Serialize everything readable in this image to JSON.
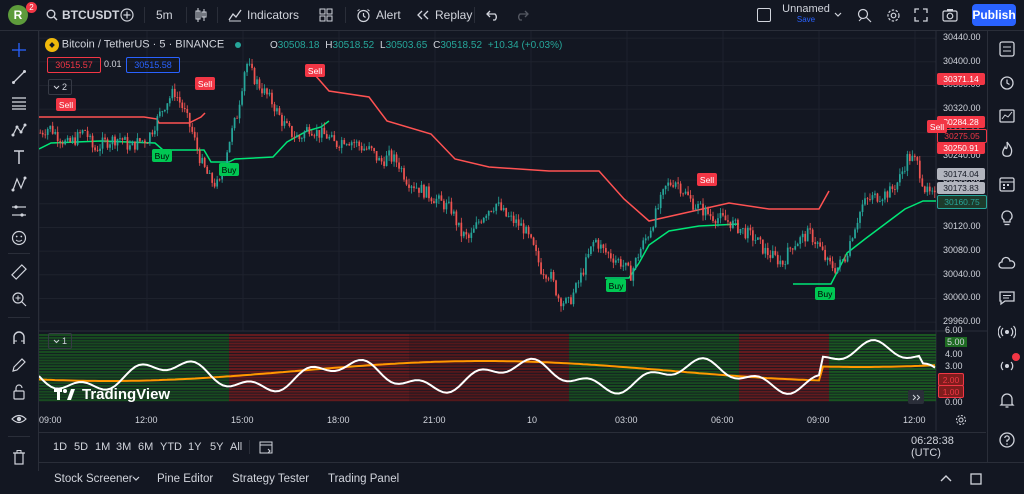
{
  "topbar": {
    "avatar_letter": "R",
    "notif_count": "2",
    "symbol": "BTCUSDT",
    "interval": "5m",
    "indicators_label": "Indicators",
    "alert_label": "Alert",
    "replay_label": "Replay",
    "layout_name": "Unnamed",
    "layout_status": "Save",
    "publish_label": "Publish"
  },
  "legend": {
    "title": "Bitcoin / TetherUS · 5 · BINANCE",
    "o_label": "O",
    "o_value": "30508.18",
    "h_label": "H",
    "h_value": "30518.52",
    "l_label": "L",
    "l_value": "30503.65",
    "c_label": "C",
    "c_value": "30518.52",
    "change": "+10.34 (+0.03%)",
    "sell_price": "30515.57",
    "spread": "0.01",
    "buy_price": "30515.58",
    "indicator_count": "2",
    "pane2_count": "1"
  },
  "price_axis": [
    "30440.00",
    "30400.00",
    "30360.00",
    "30320.00",
    "30280.00",
    "30240.00",
    "30200.00",
    "30160.00",
    "30120.00",
    "30080.00",
    "30040.00",
    "30000.00",
    "29960.00"
  ],
  "price_tags": [
    {
      "text": "30371.14",
      "color": "#f23645"
    },
    {
      "text": "30284.28",
      "color": "#f23645"
    },
    {
      "text": "30275.05",
      "color": "#131722"
    },
    {
      "text": "30250.91",
      "color": "#f23645"
    },
    {
      "text": "30174.04",
      "color": "#b2b5be"
    },
    {
      "text": "30173.83",
      "color": "#b2b5be"
    },
    {
      "text": "30160.75",
      "color": "#1d3a2b"
    }
  ],
  "osc_axis": [
    "6.00",
    "5.00",
    "4.00",
    "3.00",
    "2.00",
    "1.00",
    "0.00"
  ],
  "osc_value_tags": [
    "2.00",
    "1.00"
  ],
  "time_axis": [
    "09:00",
    "12:00",
    "15:00",
    "18:00",
    "21:00",
    "10",
    "03:00",
    "06:00",
    "09:00",
    "12:00"
  ],
  "signals": {
    "buy_label": "Buy",
    "sell_label": "Sell"
  },
  "watermark": "TradingView",
  "ranges": [
    "1D",
    "5D",
    "1M",
    "3M",
    "6M",
    "YTD",
    "1Y",
    "5Y",
    "All"
  ],
  "clock": "06:28:38 (UTC)",
  "footer_tabs": [
    "Stock Screener",
    "Pine Editor",
    "Strategy Tester",
    "Trading Panel"
  ],
  "colors": {
    "up": "#26a69a",
    "down": "#ef5350",
    "buy_line": "#00e676",
    "sell_line": "#ff5252",
    "osc_white": "#ffffff",
    "osc_orange": "#ff9800",
    "accent": "#2962ff"
  },
  "chart_data": {
    "type": "candlestick",
    "ylim": [
      29945,
      30452
    ],
    "candles_close_path_description": "",
    "close_series": [
      30280,
      30290,
      30275,
      30260,
      30270,
      30285,
      30250,
      30262,
      30268,
      30272,
      30255,
      30265,
      30270,
      30300,
      30330,
      30350,
      30320,
      30280,
      30230,
      30200,
      30190,
      30260,
      30310,
      30400,
      30370,
      30350,
      30330,
      30300,
      30280,
      30270,
      30290,
      30280,
      30275,
      30260,
      30270,
      30265,
      30255,
      30250,
      30230,
      30240,
      30230,
      30200,
      30190,
      30180,
      30170,
      30160,
      30150,
      30110,
      30100,
      30130,
      30150,
      30160,
      30140,
      30130,
      30120,
      30090,
      30050,
      30040,
      30000,
      29990,
      30020,
      30060,
      30100,
      30080,
      30070,
      30060,
      30040,
      30080,
      30110,
      30150,
      30190,
      30200,
      30180,
      30160,
      30150,
      30140,
      30135,
      30130,
      30120,
      30110,
      30100,
      30080,
      30070,
      30060,
      30090,
      30100,
      30110,
      30090,
      30060,
      30050,
      30070,
      30120,
      30160,
      30170,
      30175,
      30180,
      30200,
      30240,
      30230,
      30180,
      30170
    ]
  }
}
